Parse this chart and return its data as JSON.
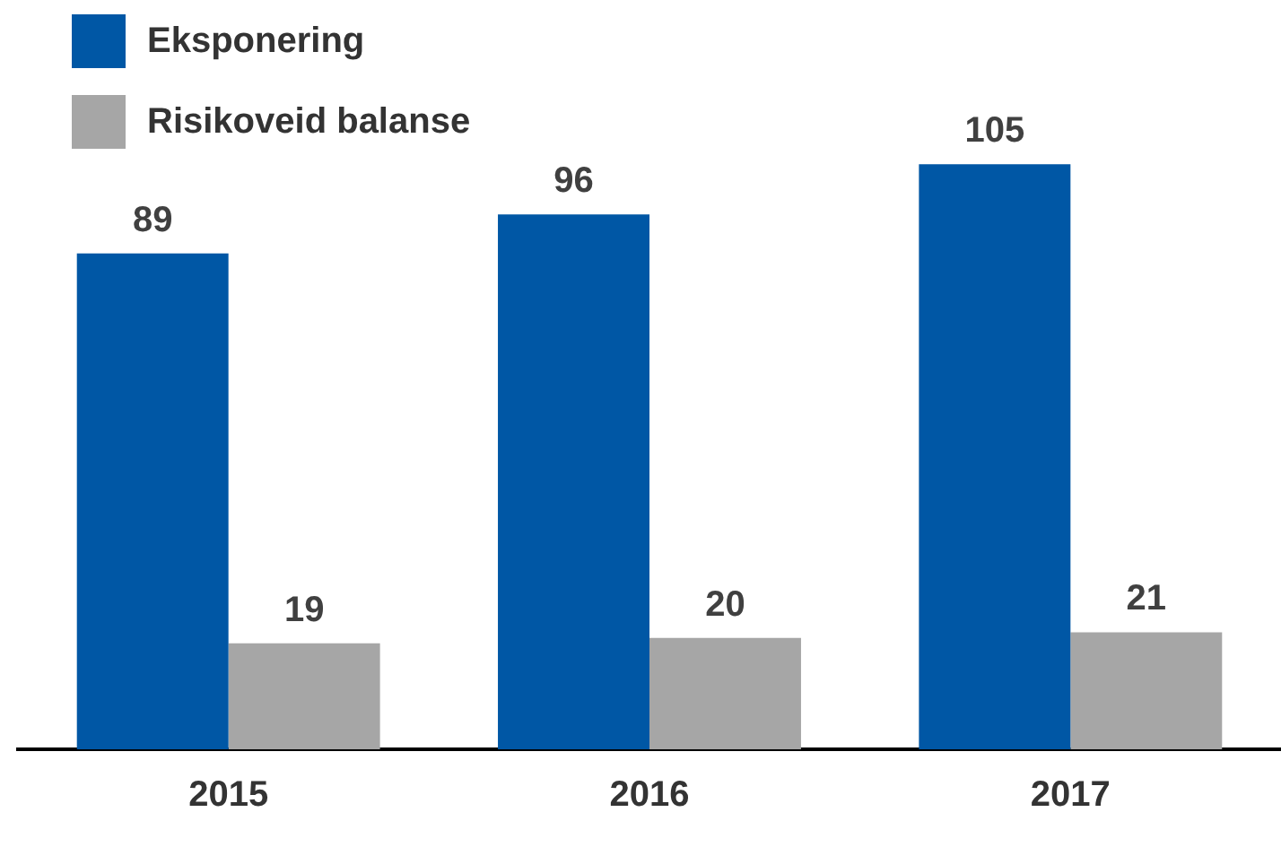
{
  "chart_data": {
    "type": "bar",
    "categories": [
      "2015",
      "2016",
      "2017"
    ],
    "series": [
      {
        "name": "Eksponering",
        "color": "#0057a5",
        "values": [
          89,
          96,
          105
        ]
      },
      {
        "name": "Risikoveid balanse",
        "color": "#a6a6a6",
        "values": [
          19,
          20,
          21
        ]
      }
    ],
    "tick_labels": "x",
    "data_labels": true,
    "legend": "top left",
    "grid": false
  }
}
